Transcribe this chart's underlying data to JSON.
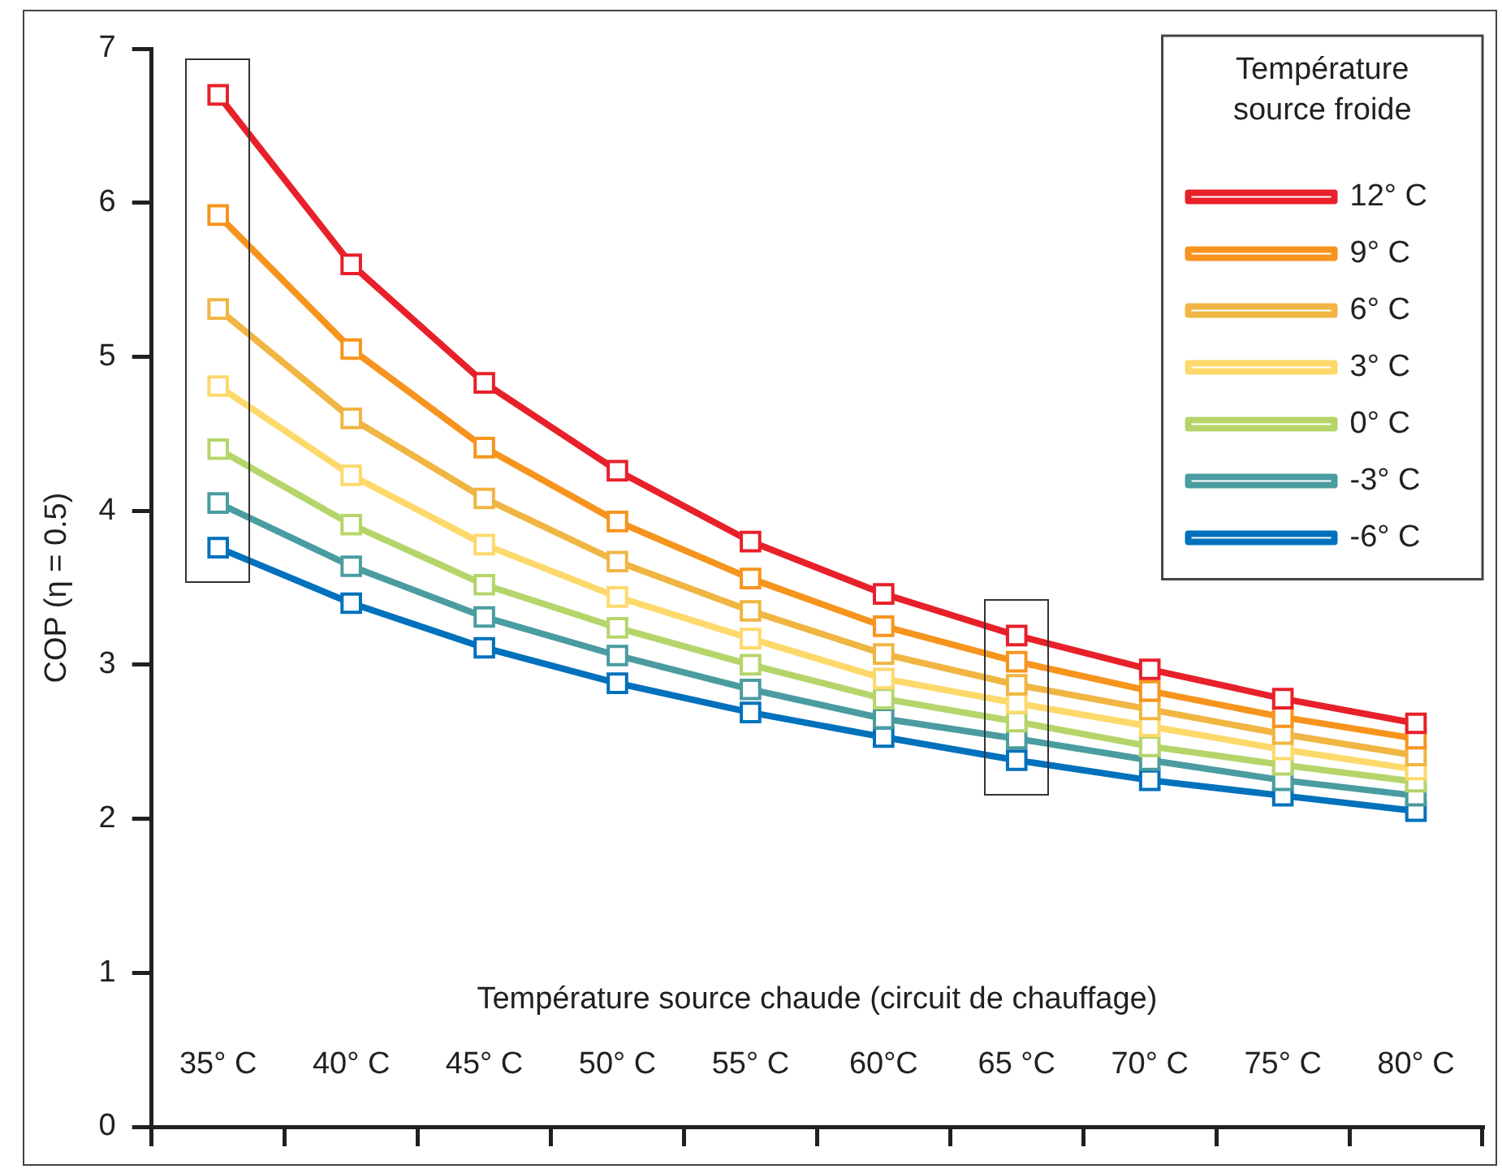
{
  "chart_data": {
    "type": "line",
    "ylabel": "COP (η = 0.5)",
    "xlabel": "Température source chaude (circuit de chauffage)",
    "legend_title": "Température source froide",
    "categories": [
      "35° C",
      "40° C",
      "45° C",
      "50° C",
      "55° C",
      "60°C",
      "65 °C",
      "70° C",
      "75° C",
      "80° C"
    ],
    "ylim": [
      0,
      7
    ],
    "yticks": [
      0,
      1,
      2,
      3,
      4,
      5,
      6,
      7
    ],
    "grid": false,
    "legend": "top right",
    "marker": "square",
    "line_style": "solid",
    "series": [
      {
        "name": "12° C",
        "color": "#e8202a",
        "values": [
          6.7,
          5.6,
          4.83,
          4.26,
          3.8,
          3.46,
          3.19,
          2.97,
          2.78,
          2.62
        ]
      },
      {
        "name": "9° C",
        "color": "#f7941d",
        "values": [
          5.92,
          5.05,
          4.41,
          3.93,
          3.56,
          3.25,
          3.02,
          2.83,
          2.66,
          2.52
        ]
      },
      {
        "name": "6° C",
        "color": "#f0b542",
        "values": [
          5.31,
          4.6,
          4.08,
          3.67,
          3.35,
          3.07,
          2.87,
          2.71,
          2.55,
          2.41
        ]
      },
      {
        "name": "3° C",
        "color": "#fdd96b",
        "values": [
          4.81,
          4.23,
          3.78,
          3.44,
          3.17,
          2.91,
          2.75,
          2.6,
          2.45,
          2.32
        ]
      },
      {
        "name": "0° C",
        "color": "#b5d56a",
        "values": [
          4.4,
          3.91,
          3.52,
          3.24,
          3.0,
          2.78,
          2.63,
          2.47,
          2.35,
          2.24
        ]
      },
      {
        "name": "-3° C",
        "color": "#4a9ca0",
        "values": [
          4.05,
          3.64,
          3.31,
          3.06,
          2.84,
          2.65,
          2.52,
          2.38,
          2.25,
          2.15
        ]
      },
      {
        "name": "-6° C",
        "color": "#0071bc",
        "values": [
          3.76,
          3.4,
          3.11,
          2.88,
          2.69,
          2.53,
          2.38,
          2.25,
          2.15,
          2.05
        ]
      }
    ]
  }
}
